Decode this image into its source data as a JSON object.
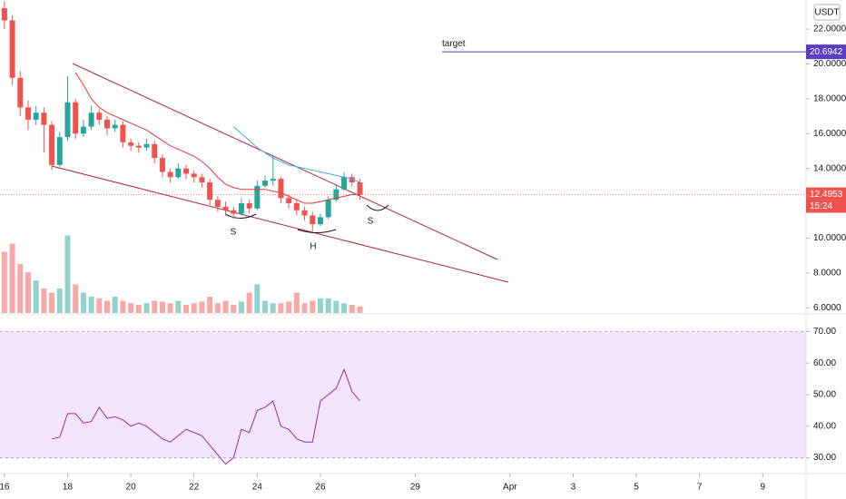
{
  "chart_data": [
    {
      "type": "candlestick",
      "currency": "USDT",
      "x": [
        0,
        0.25,
        0.5,
        0.75,
        1,
        1.25,
        1.5,
        1.75,
        2,
        2.25,
        2.5,
        2.75,
        3,
        3.25,
        3.5,
        3.75,
        4,
        4.25,
        4.5,
        4.75,
        5,
        5.25,
        5.5,
        5.75,
        6,
        6.25,
        6.5,
        6.75,
        7,
        7.25,
        7.5,
        7.75,
        8,
        8.25,
        8.5,
        8.75,
        9,
        9.25,
        9.5,
        9.75,
        10,
        10.25,
        10.5,
        10.75,
        11,
        11.25
      ],
      "open": [
        23.2,
        22.5,
        19.2,
        17.5,
        16.8,
        17.2,
        16.5,
        14.2,
        15.8,
        17.8,
        16.0,
        16.4,
        17.2,
        16.8,
        16.3,
        16.5,
        15.5,
        15.3,
        15.2,
        15.4,
        14.6,
        13.8,
        13.5,
        14.0,
        13.7,
        13.5,
        13.2,
        12.2,
        11.8,
        11.6,
        11.4,
        12.0,
        11.7,
        13.0,
        13.3,
        13.4,
        12.3,
        12.0,
        11.6,
        11.3,
        10.8,
        11.2,
        12.2,
        12.8,
        13.5,
        13.2
      ],
      "high": [
        23.6,
        22.8,
        19.6,
        17.9,
        17.6,
        17.5,
        16.7,
        16.1,
        19.3,
        18.0,
        16.8,
        17.6,
        17.4,
        17.0,
        16.8,
        16.7,
        15.7,
        15.5,
        15.7,
        15.6,
        14.8,
        14.0,
        14.3,
        14.2,
        13.9,
        13.7,
        13.4,
        12.4,
        12.1,
        11.8,
        12.3,
        12.2,
        13.3,
        13.6,
        14.7,
        13.5,
        12.5,
        12.2,
        11.8,
        11.5,
        11.4,
        12.4,
        13.1,
        13.8,
        13.7,
        13.4
      ],
      "low": [
        22.0,
        18.8,
        17.0,
        16.2,
        16.5,
        14.9,
        13.9,
        14.1,
        15.6,
        15.7,
        15.8,
        16.2,
        16.5,
        15.9,
        16.1,
        15.2,
        15.0,
        14.9,
        15.0,
        14.3,
        13.5,
        13.2,
        13.4,
        13.4,
        13.2,
        12.9,
        11.9,
        11.5,
        11.3,
        11.1,
        11.3,
        11.4,
        11.6,
        12.9,
        13.0,
        12.0,
        11.7,
        11.3,
        11.0,
        10.4,
        10.7,
        11.1,
        12.1,
        12.7,
        13.0,
        12.2
      ],
      "close": [
        22.5,
        19.2,
        17.5,
        16.8,
        17.2,
        16.5,
        14.2,
        15.8,
        17.8,
        16.0,
        16.4,
        17.2,
        16.8,
        16.3,
        16.5,
        15.5,
        15.3,
        15.2,
        15.4,
        14.6,
        13.8,
        13.5,
        14.0,
        13.7,
        13.5,
        13.2,
        12.2,
        11.8,
        11.6,
        11.4,
        12.0,
        11.7,
        13.0,
        13.3,
        13.4,
        12.3,
        12.0,
        11.6,
        11.3,
        10.8,
        11.2,
        12.2,
        12.8,
        13.5,
        13.2,
        12.4953
      ],
      "volume": [
        75,
        85,
        60,
        50,
        40,
        30,
        25,
        30,
        95,
        35,
        25,
        20,
        18,
        15,
        20,
        15,
        12,
        10,
        12,
        15,
        14,
        12,
        15,
        10,
        12,
        14,
        20,
        12,
        15,
        10,
        14,
        25,
        35,
        15,
        12,
        12,
        14,
        25,
        12,
        15,
        18,
        18,
        15,
        12,
        10,
        8
      ],
      "up_color": "#26a69a",
      "down_color": "#ef5350",
      "series": [
        {
          "color": "#e53935",
          "values": [
            null,
            null,
            null,
            null,
            null,
            null,
            null,
            null,
            null,
            19.5,
            18.8,
            18.0,
            17.5,
            17.2,
            17.0,
            16.8,
            16.6,
            16.4,
            16.2,
            15.9,
            15.6,
            15.3,
            15.1,
            14.9,
            14.7,
            14.4,
            14.0,
            13.5,
            13.1,
            12.9,
            12.8,
            12.8,
            12.8,
            12.8,
            12.7,
            12.6,
            12.4,
            12.2,
            12.0,
            12.0,
            12.1,
            12.2,
            12.3,
            12.4,
            12.5,
            12.5
          ]
        },
        {
          "color": "#42a5f5",
          "values": [
            null,
            null,
            null,
            null,
            null,
            null,
            null,
            null,
            null,
            null,
            null,
            null,
            null,
            null,
            null,
            null,
            null,
            null,
            null,
            null,
            null,
            null,
            null,
            null,
            null,
            null,
            null,
            null,
            null,
            16.4,
            16.0,
            15.6,
            15.2,
            14.9,
            14.6,
            14.4,
            14.2,
            14.1,
            14.0,
            13.9,
            13.8,
            13.7,
            13.6,
            13.5,
            13.4,
            13.2
          ]
        }
      ],
      "ylim": [
        5.7,
        23.67
      ],
      "yticks": [
        {
          "value": 22,
          "label": "22.0000"
        },
        {
          "value": 20,
          "label": "20.0000"
        },
        {
          "value": 18,
          "label": "18.0000"
        },
        {
          "value": 16,
          "label": "16.0000"
        },
        {
          "value": 14,
          "label": "14.0000"
        },
        {
          "value": 10,
          "label": "10.0000"
        },
        {
          "value": 8,
          "label": "8.0000"
        },
        {
          "value": 6,
          "label": "6.0000"
        }
      ],
      "xlim": [
        -0.14,
        25.37
      ],
      "xticks": [
        {
          "value": 0,
          "label": "16"
        },
        {
          "value": 2,
          "label": "18"
        },
        {
          "value": 4,
          "label": "20"
        },
        {
          "value": 6,
          "label": "22"
        },
        {
          "value": 8,
          "label": "24"
        },
        {
          "value": 10,
          "label": "26"
        },
        {
          "value": 13,
          "label": "29"
        },
        {
          "value": 16,
          "label": "Apr"
        },
        {
          "value": 18,
          "label": "3"
        },
        {
          "value": 20,
          "label": "5"
        },
        {
          "value": 22,
          "label": "7"
        },
        {
          "value": 24,
          "label": "9"
        }
      ],
      "current_price": {
        "value": 12.4953,
        "countdown": "15:24"
      },
      "target": {
        "label": "target",
        "value": 20.6942
      },
      "annotations": [
        "S",
        "H",
        "S"
      ],
      "grid": false
    },
    {
      "type": "line",
      "color": "#9c27b0",
      "x": [
        1.5,
        1.75,
        2,
        2.25,
        2.5,
        2.75,
        3,
        3.25,
        3.5,
        3.75,
        4,
        4.25,
        4.5,
        4.75,
        5,
        5.25,
        5.5,
        5.75,
        6,
        6.25,
        6.5,
        6.75,
        7,
        7.25,
        7.5,
        7.75,
        8,
        8.25,
        8.5,
        8.75,
        9,
        9.25,
        9.5,
        9.75,
        10,
        10.25,
        10.5,
        10.75,
        11,
        11.25
      ],
      "values": [
        36,
        36.5,
        44,
        44,
        41,
        41.5,
        46,
        42.5,
        43,
        42,
        40,
        41,
        40,
        38,
        36,
        35,
        37,
        39,
        38,
        37,
        34,
        31,
        28,
        30,
        39,
        38,
        45,
        46,
        48,
        40,
        39,
        36,
        35,
        35,
        48,
        50,
        52,
        58,
        51,
        48
      ],
      "band": [
        70,
        30
      ],
      "band_color": "#f3e5fc",
      "ylim": [
        25,
        75
      ],
      "yticks": [
        {
          "value": 70,
          "label": "70.00"
        },
        {
          "value": 60,
          "label": "60.00"
        },
        {
          "value": 50,
          "label": "50.00"
        },
        {
          "value": 40,
          "label": "40.00"
        },
        {
          "value": 30,
          "label": "30.00"
        }
      ]
    }
  ]
}
